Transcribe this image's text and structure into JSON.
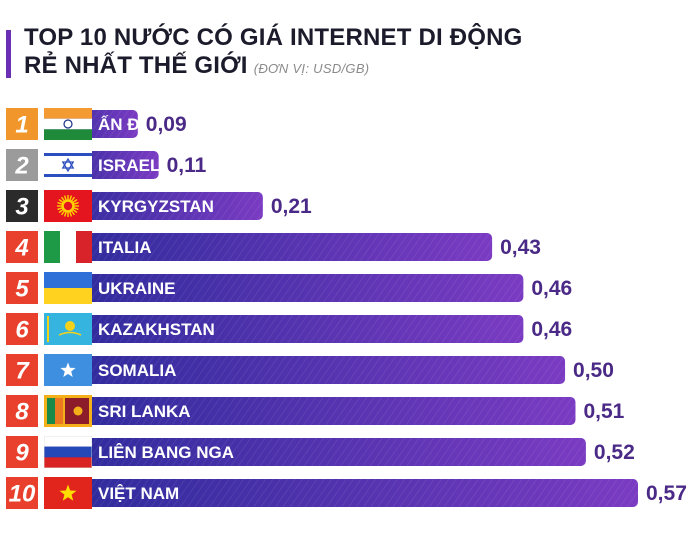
{
  "header": {
    "title_line1": "TOP 10 NƯỚC CÓ GIÁ INTERNET DI ĐỘNG",
    "title_line2": "RẺ NHẤT THẾ GIỚI",
    "unit": "(ĐƠN VỊ: USD/GB)"
  },
  "colors": {
    "rank_orange": "#f0962a",
    "rank_gray": "#9b9b9b",
    "rank_dark": "#2b2b2b",
    "rank_red": "#e8402d",
    "bar_start": "#2a2a9a",
    "bar_end": "#7a3bc2",
    "value_text": "#4a2a86"
  },
  "chart_data": {
    "type": "bar",
    "orientation": "horizontal",
    "title": "TOP 10 NƯỚC CÓ GIÁ INTERNET DI ĐỘNG RẺ NHẤT THẾ GIỚI",
    "unit": "USD/GB",
    "categories": [
      "ẤN ĐỘ",
      "ISRAEL",
      "KYRGYZSTAN",
      "ITALIA",
      "UKRAINE",
      "KAZAKHSTAN",
      "SOMALIA",
      "SRI LANKA",
      "LIÊN BANG NGA",
      "VIỆT NAM"
    ],
    "ranks": [
      "1",
      "2",
      "3",
      "4",
      "5",
      "6",
      "7",
      "8",
      "9",
      "10"
    ],
    "values": [
      0.09,
      0.11,
      0.21,
      0.43,
      0.46,
      0.46,
      0.5,
      0.51,
      0.52,
      0.57
    ],
    "value_labels": [
      "0,09",
      "0,11",
      "0,21",
      "0,43",
      "0,46",
      "0,46",
      "0,50",
      "0,51",
      "0,52",
      "0,57"
    ],
    "flags": [
      "india-flag",
      "israel-flag",
      "kyrgyzstan-flag",
      "italy-flag",
      "ukraine-flag",
      "kazakhstan-flag",
      "somalia-flag",
      "sri-lanka-flag",
      "russia-flag",
      "vietnam-flag"
    ],
    "rank_colors": [
      "rank_orange",
      "rank_gray",
      "rank_dark",
      "rank_red",
      "rank_red",
      "rank_red",
      "rank_red",
      "rank_red",
      "rank_red",
      "rank_red"
    ]
  }
}
